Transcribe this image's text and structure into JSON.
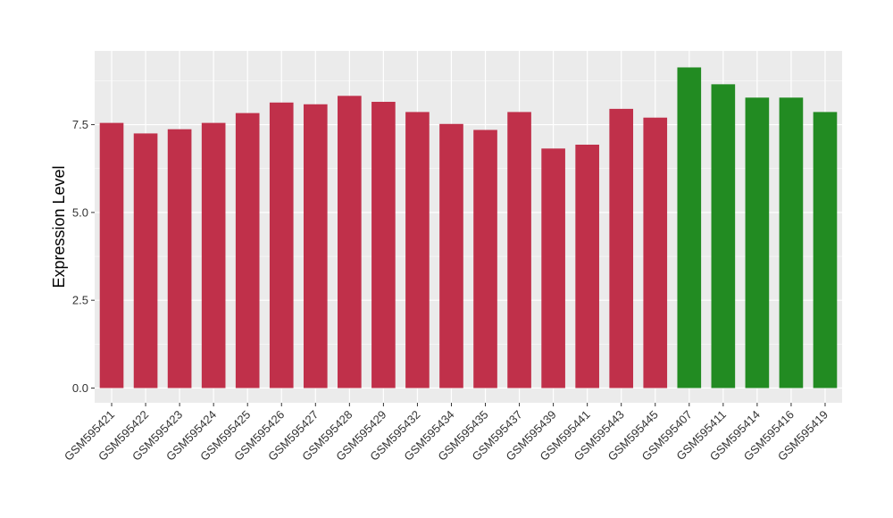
{
  "chart_data": {
    "type": "bar",
    "title": "",
    "xlabel": "",
    "ylabel": "Expression Level",
    "ylim": [
      -0.42,
      9.6
    ],
    "yticks": [
      0.0,
      2.5,
      5.0,
      7.5
    ],
    "ytick_labels": [
      "0.0",
      "2.5",
      "5.0",
      "7.5"
    ],
    "grid": true,
    "legend": "none",
    "categories": [
      "GSM595421",
      "GSM595422",
      "GSM595423",
      "GSM595424",
      "GSM595425",
      "GSM595426",
      "GSM595427",
      "GSM595428",
      "GSM595429",
      "GSM595432",
      "GSM595434",
      "GSM595435",
      "GSM595437",
      "GSM595439",
      "GSM595441",
      "GSM595443",
      "GSM595445",
      "GSM595407",
      "GSM595411",
      "GSM595414",
      "GSM595416",
      "GSM595419"
    ],
    "values": [
      7.55,
      7.25,
      7.37,
      7.55,
      7.83,
      8.13,
      8.08,
      8.32,
      8.15,
      7.86,
      7.52,
      7.35,
      7.86,
      6.82,
      6.93,
      7.95,
      7.7,
      9.13,
      8.65,
      8.27,
      8.27,
      7.86
    ],
    "bar_colors": [
      "#C0304A",
      "#C0304A",
      "#C0304A",
      "#C0304A",
      "#C0304A",
      "#C0304A",
      "#C0304A",
      "#C0304A",
      "#C0304A",
      "#C0304A",
      "#C0304A",
      "#C0304A",
      "#C0304A",
      "#C0304A",
      "#C0304A",
      "#C0304A",
      "#C0304A",
      "#228B22",
      "#228B22",
      "#228B22",
      "#228B22",
      "#228B22"
    ]
  },
  "colors": {
    "panel_background": "#EBEBEB",
    "grid_major": "#FFFFFF",
    "group_a": "#C0304A",
    "group_b": "#228B22"
  }
}
